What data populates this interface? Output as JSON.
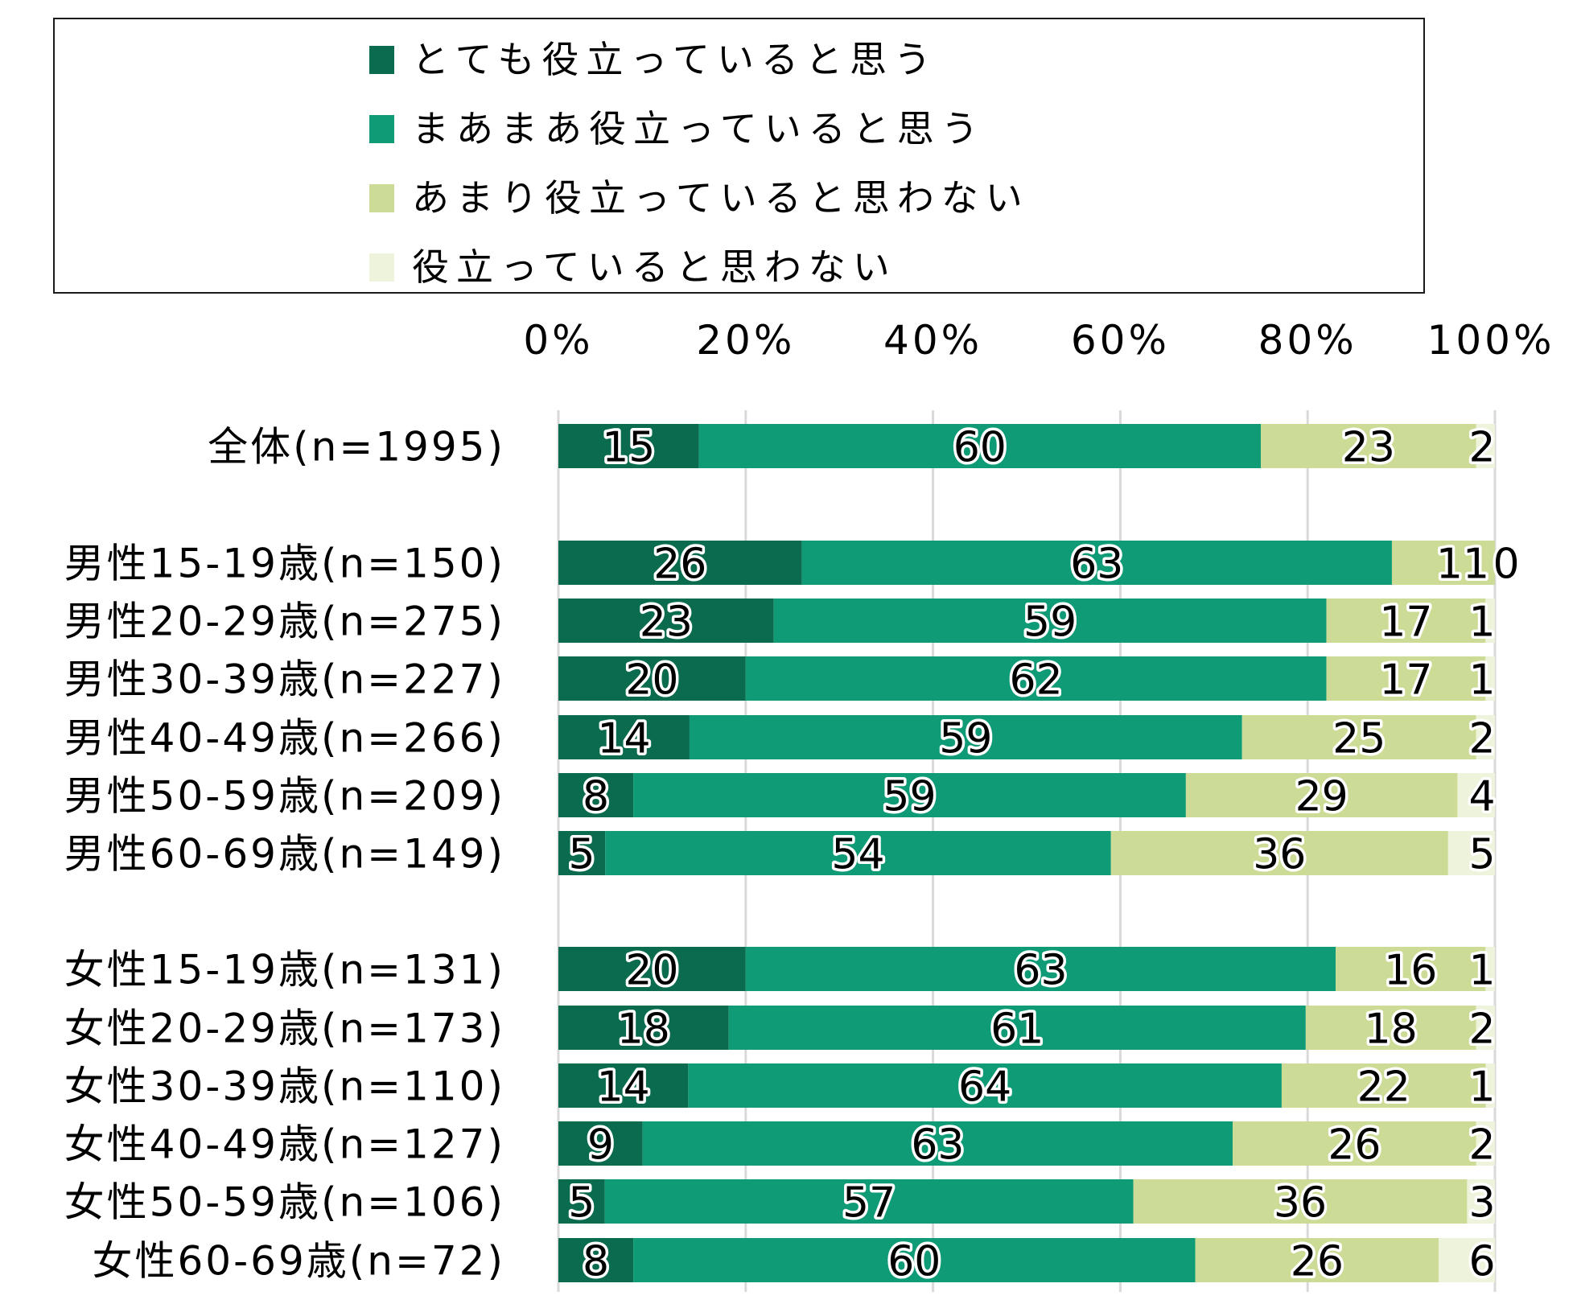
{
  "chart_data": {
    "type": "bar",
    "orientation": "horizontal",
    "stacked": true,
    "normalized": true,
    "title": "",
    "xlabel": "",
    "ylabel": "",
    "xlim": [
      0,
      100
    ],
    "x_ticks": [
      "0%",
      "20%",
      "40%",
      "60%",
      "80%",
      "100%"
    ],
    "x_tick_values": [
      0,
      20,
      40,
      60,
      80,
      100
    ],
    "grid": true,
    "legend_position": "top",
    "series": [
      {
        "name": "とても役立っていると思う",
        "color": "#0a6b4e"
      },
      {
        "name": "まあまあ役立っていると思う",
        "color": "#109b77"
      },
      {
        "name": "あまり役立っていると思わない",
        "color": "#ccdc96"
      },
      {
        "name": "役立っていると思わない",
        "color": "#eef3dc"
      }
    ],
    "categories": [
      {
        "label": "全体(n=1995)",
        "group": 0,
        "values": [
          15,
          60,
          23,
          2
        ]
      },
      {
        "label": "男性15-19歳(n=150)",
        "group": 1,
        "values": [
          26,
          63,
          11,
          0
        ]
      },
      {
        "label": "男性20-29歳(n=275)",
        "group": 1,
        "values": [
          23,
          59,
          17,
          1
        ]
      },
      {
        "label": "男性30-39歳(n=227)",
        "group": 1,
        "values": [
          20,
          62,
          17,
          1
        ]
      },
      {
        "label": "男性40-49歳(n=266)",
        "group": 1,
        "values": [
          14,
          59,
          25,
          2
        ]
      },
      {
        "label": "男性50-59歳(n=209)",
        "group": 1,
        "values": [
          8,
          59,
          29,
          4
        ]
      },
      {
        "label": "男性60-69歳(n=149)",
        "group": 1,
        "values": [
          5,
          54,
          36,
          5
        ]
      },
      {
        "label": "女性15-19歳(n=131)",
        "group": 2,
        "values": [
          20,
          63,
          16,
          1
        ]
      },
      {
        "label": "女性20-29歳(n=173)",
        "group": 2,
        "values": [
          18,
          61,
          18,
          2
        ]
      },
      {
        "label": "女性30-39歳(n=110)",
        "group": 2,
        "values": [
          14,
          64,
          22,
          1
        ]
      },
      {
        "label": "女性40-49歳(n=127)",
        "group": 2,
        "values": [
          9,
          63,
          26,
          2
        ]
      },
      {
        "label": "女性50-59歳(n=106)",
        "group": 2,
        "values": [
          5,
          57,
          36,
          3
        ]
      },
      {
        "label": "女性60-69歳(n=72)",
        "group": 2,
        "values": [
          8,
          60,
          26,
          6
        ]
      }
    ]
  },
  "colors": {
    "gridline": "#d9d9d9",
    "label_text": "#000000",
    "label_halo": "#ffffff"
  }
}
